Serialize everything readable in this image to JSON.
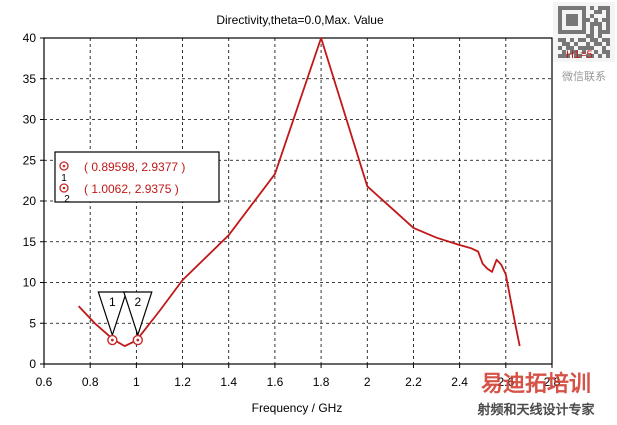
{
  "chart_data": {
    "type": "line",
    "title": "Directivity,theta=0.0,Max. Value",
    "xlabel": "Frequency / GHz",
    "ylabel": "",
    "xlim": [
      0.6,
      2.8
    ],
    "ylim": [
      0,
      40
    ],
    "xticks": [
      "0.6",
      "0.8",
      "1",
      "1.2",
      "1.4",
      "1.6",
      "1.8",
      "2",
      "2.2",
      "2.4",
      "2.6",
      "2.8"
    ],
    "yticks": [
      "0",
      "5",
      "10",
      "15",
      "20",
      "25",
      "30",
      "35",
      "40"
    ],
    "grid": true,
    "series": [
      {
        "color": "#c01818",
        "x": [
          0.75,
          0.82,
          0.9,
          0.95,
          1.0,
          1.1,
          1.2,
          1.4,
          1.6,
          1.8,
          2.0,
          2.2,
          2.3,
          2.4,
          2.45,
          2.48,
          2.5,
          2.52,
          2.54,
          2.56,
          2.58,
          2.6,
          2.62,
          2.64,
          2.66
        ],
        "y": [
          7.1,
          5.0,
          3.0,
          2.2,
          2.9,
          6.5,
          10.3,
          15.8,
          23.3,
          40.0,
          21.8,
          16.7,
          15.5,
          14.6,
          14.2,
          13.8,
          12.3,
          11.7,
          11.3,
          12.8,
          12.2,
          11.0,
          8.0,
          5.0,
          2.2
        ]
      }
    ],
    "markers": [
      {
        "label": "1",
        "x": 0.89598,
        "y": 2.9377
      },
      {
        "label": "2",
        "x": 1.0062,
        "y": 2.9375
      }
    ],
    "legend": {
      "position": "left",
      "entries": [
        {
          "id": "1",
          "text": "( 0.89598, 2.9377 )"
        },
        {
          "id": "2",
          "text": "( 1.0062, 2.9375 )"
        }
      ]
    },
    "annotation": "H1=5",
    "colors": {
      "curve": "#c01818",
      "marker": "#c8282a",
      "grid": "#000000",
      "watermark": "#c0392b"
    }
  },
  "watermark": {
    "qr_caption": "微信联系",
    "brand": "易迪拓培训",
    "tagline": "射频和天线设计专家"
  }
}
